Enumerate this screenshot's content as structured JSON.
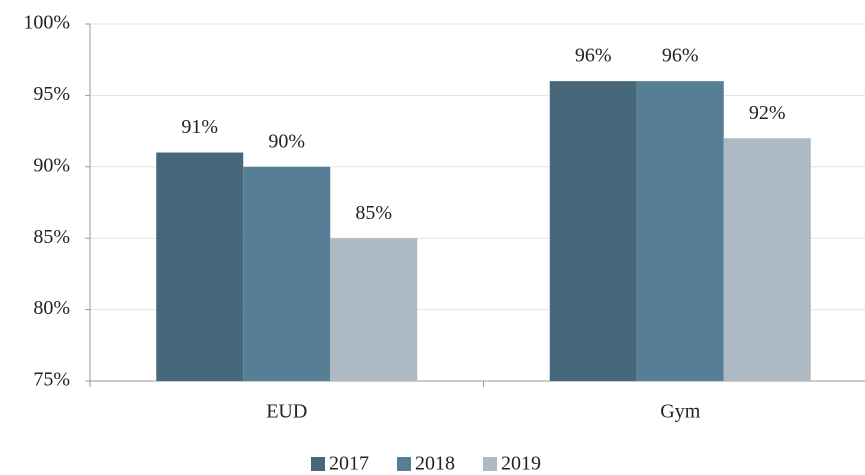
{
  "chart_data": {
    "type": "bar",
    "categories": [
      "EUD",
      "Gym"
    ],
    "series": [
      {
        "name": "2017",
        "color": "#46687a",
        "values": [
          91,
          96
        ],
        "value_labels": [
          "91%",
          "96%"
        ]
      },
      {
        "name": "2018",
        "color": "#567f96",
        "values": [
          90,
          96
        ],
        "value_labels": [
          "90%",
          "96%"
        ]
      },
      {
        "name": "2019",
        "color": "#adbac3",
        "values": [
          85,
          92
        ],
        "value_labels": [
          "85%",
          "92%"
        ]
      }
    ],
    "ylim": [
      75,
      100
    ],
    "yticks": [
      {
        "value": 75,
        "label": "75%"
      },
      {
        "value": 80,
        "label": "80%"
      },
      {
        "value": 85,
        "label": "85%"
      },
      {
        "value": 90,
        "label": "90%"
      },
      {
        "value": 95,
        "label": "95%"
      },
      {
        "value": 100,
        "label": "100%"
      }
    ],
    "grid": true,
    "legend": "bottom"
  }
}
